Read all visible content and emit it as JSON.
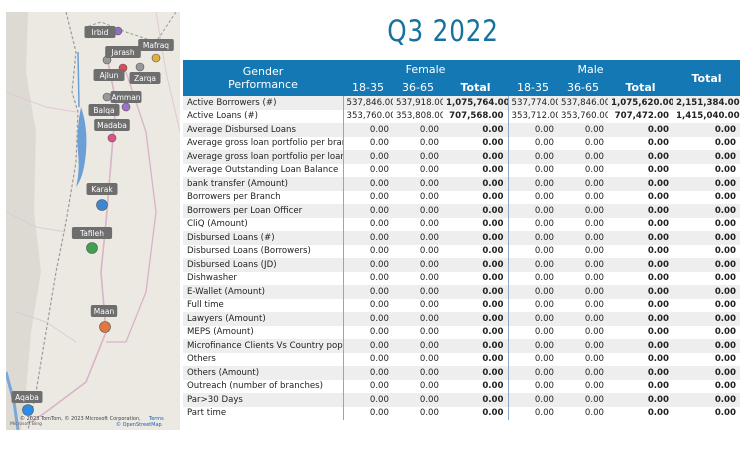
{
  "header": {
    "title": "Q3 2022"
  },
  "map": {
    "labels": [
      "Irbid",
      "Jarash",
      "Mafraq",
      "Ajlun",
      "Zarqa",
      "Amman",
      "Balqa",
      "Madaba",
      "Karak",
      "Tafileh",
      "Maan",
      "Aqaba"
    ],
    "attribution": [
      "© 2023 TomTom, © 2023 Microsoft Corporation,",
      "Terms",
      "© OpenStreetMap",
      "Microsoft Bing"
    ]
  },
  "table": {
    "corner": [
      "Gender",
      "Performance"
    ],
    "groups": [
      {
        "name": "Female",
        "columns": [
          "18-35",
          "36-65",
          "Total"
        ]
      },
      {
        "name": "Male",
        "columns": [
          "18-35",
          "36-65",
          "Total"
        ]
      }
    ],
    "grand_total": "Total",
    "rows": [
      [
        "Active Borrowers (#)",
        "537,846.00",
        "537,918.00",
        "1,075,764.00",
        "537,774.00",
        "537,846.00",
        "1,075,620.00",
        "2,151,384.00"
      ],
      [
        "Active Loans (#)",
        "353,760.00",
        "353,808.00",
        "707,568.00",
        "353,712.00",
        "353,760.00",
        "707,472.00",
        "1,415,040.00"
      ],
      [
        "Average Disbursed Loans",
        "0.00",
        "0.00",
        "0.00",
        "0.00",
        "0.00",
        "0.00",
        "0.00"
      ],
      [
        "Average gross loan portfolio per branch",
        "0.00",
        "0.00",
        "0.00",
        "0.00",
        "0.00",
        "0.00",
        "0.00"
      ],
      [
        "Average gross loan portfolio per loan officer",
        "0.00",
        "0.00",
        "0.00",
        "0.00",
        "0.00",
        "0.00",
        "0.00"
      ],
      [
        "Average Outstanding Loan Balance",
        "0.00",
        "0.00",
        "0.00",
        "0.00",
        "0.00",
        "0.00",
        "0.00"
      ],
      [
        "bank transfer (Amount)",
        "0.00",
        "0.00",
        "0.00",
        "0.00",
        "0.00",
        "0.00",
        "0.00"
      ],
      [
        "Borrowers per Branch",
        "0.00",
        "0.00",
        "0.00",
        "0.00",
        "0.00",
        "0.00",
        "0.00"
      ],
      [
        "Borrowers per Loan Officer",
        "0.00",
        "0.00",
        "0.00",
        "0.00",
        "0.00",
        "0.00",
        "0.00"
      ],
      [
        "CliQ (Amount)",
        "0.00",
        "0.00",
        "0.00",
        "0.00",
        "0.00",
        "0.00",
        "0.00"
      ],
      [
        "Disbursed Loans (#)",
        "0.00",
        "0.00",
        "0.00",
        "0.00",
        "0.00",
        "0.00",
        "0.00"
      ],
      [
        "Disbursed Loans (Borrowers)",
        "0.00",
        "0.00",
        "0.00",
        "0.00",
        "0.00",
        "0.00",
        "0.00"
      ],
      [
        "Disbursed Loans (JD)",
        "0.00",
        "0.00",
        "0.00",
        "0.00",
        "0.00",
        "0.00",
        "0.00"
      ],
      [
        "Dishwasher",
        "0.00",
        "0.00",
        "0.00",
        "0.00",
        "0.00",
        "0.00",
        "0.00"
      ],
      [
        "E-Wallet (Amount)",
        "0.00",
        "0.00",
        "0.00",
        "0.00",
        "0.00",
        "0.00",
        "0.00"
      ],
      [
        "Full time",
        "0.00",
        "0.00",
        "0.00",
        "0.00",
        "0.00",
        "0.00",
        "0.00"
      ],
      [
        "Lawyers (Amount)",
        "0.00",
        "0.00",
        "0.00",
        "0.00",
        "0.00",
        "0.00",
        "0.00"
      ],
      [
        "MEPS (Amount)",
        "0.00",
        "0.00",
        "0.00",
        "0.00",
        "0.00",
        "0.00",
        "0.00"
      ],
      [
        "Microfinance Clients Vs Country population",
        "0.00",
        "0.00",
        "0.00",
        "0.00",
        "0.00",
        "0.00",
        "0.00"
      ],
      [
        "Others",
        "0.00",
        "0.00",
        "0.00",
        "0.00",
        "0.00",
        "0.00",
        "0.00"
      ],
      [
        "Others (Amount)",
        "0.00",
        "0.00",
        "0.00",
        "0.00",
        "0.00",
        "0.00",
        "0.00"
      ],
      [
        "Outreach (number of branches)",
        "0.00",
        "0.00",
        "0.00",
        "0.00",
        "0.00",
        "0.00",
        "0.00"
      ],
      [
        "Par>30 Days",
        "0.00",
        "0.00",
        "0.00",
        "0.00",
        "0.00",
        "0.00",
        "0.00"
      ],
      [
        "Part time",
        "0.00",
        "0.00",
        "0.00",
        "0.00",
        "0.00",
        "0.00",
        "0.00"
      ]
    ]
  }
}
